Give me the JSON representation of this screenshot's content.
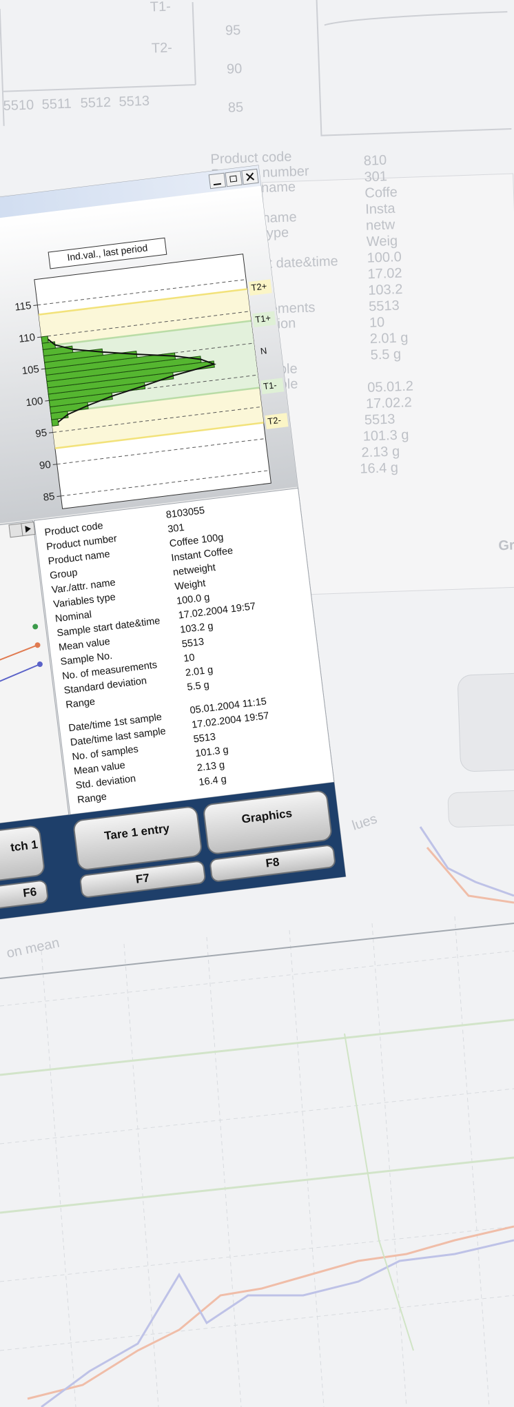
{
  "chart_data": {
    "type": "histogram",
    "title": "Ind.val., last period",
    "ylim": [
      83,
      119
    ],
    "yticks": [
      85,
      90,
      95,
      100,
      105,
      110,
      115
    ],
    "xlim": [
      0,
      100
    ],
    "bins": [
      96,
      97,
      98,
      99,
      100,
      101,
      102,
      103,
      104,
      105,
      106,
      107,
      108,
      109,
      110
    ],
    "counts": [
      3,
      8,
      18,
      30,
      46,
      60,
      80,
      74,
      62,
      44,
      28,
      14,
      6,
      3
    ],
    "color": "#55b630",
    "limits": [
      {
        "label": "T2+",
        "value": 113.5
      },
      {
        "label": "T1+",
        "value": 108.5
      },
      {
        "label": "N",
        "value": 103.5
      },
      {
        "label": "T1-",
        "value": 98
      },
      {
        "label": "T2-",
        "value": 92.5
      }
    ]
  },
  "details": {
    "rows": [
      [
        "Product code",
        "8103055"
      ],
      [
        "Product number",
        "301"
      ],
      [
        "Product name",
        "Coffee 100g"
      ],
      [
        "Group",
        "Instant Coffee"
      ],
      [
        "Var./attr. name",
        "netweight"
      ],
      [
        "Variables type",
        "Weight"
      ],
      [
        "Nominal",
        "100.0 g"
      ],
      [
        "Sample start date&time",
        "17.02.2004 19:57"
      ],
      [
        "Mean value",
        "103.2 g"
      ],
      [
        "Sample No.",
        "5513"
      ],
      [
        "No. of measurements",
        "10"
      ],
      [
        "Standard deviation",
        "2.01 g"
      ],
      [
        "Range",
        "5.5 g"
      ]
    ],
    "rows2": [
      [
        "Date/time 1st sample",
        "05.01.2004 11:15"
      ],
      [
        "Date/time last sample",
        "17.02.2004 19:57"
      ],
      [
        "No. of samples",
        "5513"
      ],
      [
        "Mean value",
        "101.3 g"
      ],
      [
        "Std. deviation",
        "2.13 g"
      ],
      [
        "Range",
        "16.4 g"
      ]
    ]
  },
  "buttons": [
    {
      "label": "tch 1",
      "key": "F6"
    },
    {
      "label": "Tare 1 entry",
      "key": "F7"
    },
    {
      "label": "Graphics",
      "key": "F8"
    }
  ],
  "background": {
    "x_labels": [
      "5510",
      "5511",
      "5512",
      "5513"
    ],
    "y_labels": [
      "95",
      "90",
      "85"
    ],
    "limit_labels": [
      "T1-",
      "T2-"
    ],
    "table_labels": [
      "Product code",
      "Product number",
      "name",
      "",
      "name",
      "type",
      "",
      "rt date&time",
      "",
      "",
      "rements",
      "ation",
      "",
      "",
      "mple",
      "mple"
    ],
    "table_values": [
      "810",
      "301",
      "Coffe",
      "Insta",
      "netw",
      "Weig",
      "100.0",
      "17.02",
      "103.2",
      "5513",
      "10",
      "2.01 g",
      "5.5 g",
      "",
      "05.01.2",
      "17.02.2",
      "5513",
      "101.3 g",
      "2.13 g",
      "16.4 g"
    ],
    "button": "Gr",
    "axis_text": "lues",
    "axis_text2": "on mean"
  }
}
